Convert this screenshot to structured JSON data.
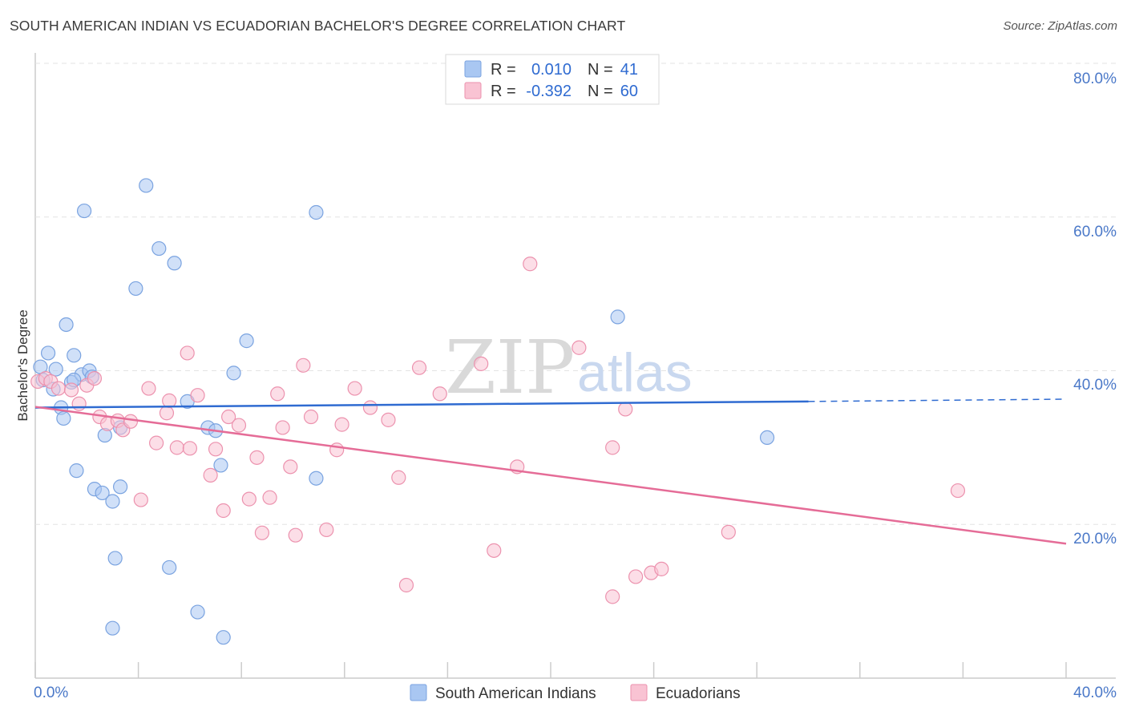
{
  "header": {
    "title": "SOUTH AMERICAN INDIAN VS ECUADORIAN BACHELOR'S DEGREE CORRELATION CHART",
    "source": "Source: ZipAtlas.com"
  },
  "watermark": {
    "zip": "ZIP",
    "atlas": "atlas"
  },
  "stats": {
    "rows": [
      {
        "r_label": "R =",
        "r_value": "0.010",
        "n_label": "N =",
        "n_value": "41",
        "color": "#a9c7f2",
        "stroke": "#7aa3e0"
      },
      {
        "r_label": "R =",
        "r_value": "-0.392",
        "n_label": "N =",
        "n_value": "60",
        "color": "#f9c3d3",
        "stroke": "#ec92ae"
      }
    ]
  },
  "legend": {
    "items": [
      {
        "label": "South American Indians",
        "color": "#a9c7f2",
        "stroke": "#7aa3e0"
      },
      {
        "label": "Ecuadorians",
        "color": "#f9c3d3",
        "stroke": "#ec92ae"
      }
    ]
  },
  "chart_data": {
    "type": "scatter",
    "title": "SOUTH AMERICAN INDIAN VS ECUADORIAN BACHELOR'S DEGREE CORRELATION CHART",
    "xlabel": "",
    "ylabel": "Bachelor's Degree",
    "xlim": [
      0,
      40
    ],
    "ylim": [
      0,
      80
    ],
    "x_tick_labels": [
      "0.0%",
      "40.0%"
    ],
    "y_ticks": [
      20,
      40,
      60,
      80
    ],
    "y_tick_labels": [
      "20.0%",
      "40.0%",
      "60.0%",
      "80.0%"
    ],
    "grid": true,
    "series": [
      {
        "name": "South American Indians",
        "color": "#a9c7f2",
        "stroke": "#7aa3e0",
        "line_color": "#2f6bd1",
        "trend": {
          "x0": 0,
          "y0": 35.2,
          "x1": 30.0,
          "y1": 36.0,
          "dash_to_x": 40,
          "dash_y": 36.3
        },
        "points": [
          [
            0.2,
            40.5
          ],
          [
            0.3,
            38.8
          ],
          [
            0.5,
            42.3
          ],
          [
            0.7,
            37.6
          ],
          [
            0.8,
            40.2
          ],
          [
            1.0,
            35.2
          ],
          [
            1.1,
            33.8
          ],
          [
            1.2,
            46.0
          ],
          [
            1.4,
            38.5
          ],
          [
            1.5,
            42.0
          ],
          [
            1.6,
            27.0
          ],
          [
            1.8,
            39.5
          ],
          [
            1.9,
            60.8
          ],
          [
            2.1,
            40.0
          ],
          [
            2.2,
            39.2
          ],
          [
            2.3,
            24.6
          ],
          [
            2.6,
            24.1
          ],
          [
            2.7,
            31.6
          ],
          [
            3.0,
            23.0
          ],
          [
            3.1,
            15.6
          ],
          [
            3.3,
            32.6
          ],
          [
            3.3,
            24.9
          ],
          [
            3.9,
            50.7
          ],
          [
            4.3,
            64.1
          ],
          [
            4.8,
            55.9
          ],
          [
            5.2,
            14.4
          ],
          [
            5.4,
            54.0
          ],
          [
            5.9,
            36.0
          ],
          [
            6.3,
            8.6
          ],
          [
            6.7,
            32.6
          ],
          [
            7.0,
            32.2
          ],
          [
            7.2,
            27.7
          ],
          [
            7.3,
            5.3
          ],
          [
            7.7,
            39.7
          ],
          [
            8.2,
            43.9
          ],
          [
            10.9,
            26.0
          ],
          [
            10.9,
            60.6
          ],
          [
            22.6,
            47.0
          ],
          [
            28.4,
            31.3
          ],
          [
            3.0,
            6.5
          ],
          [
            1.5,
            38.8
          ]
        ]
      },
      {
        "name": "Ecuadorians",
        "color": "#f9c3d3",
        "stroke": "#ec92ae",
        "line_color": "#e56c97",
        "trend": {
          "x0": 0,
          "y0": 35.3,
          "x1": 40,
          "y1": 17.5
        },
        "points": [
          [
            0.1,
            38.6
          ],
          [
            0.4,
            39.0
          ],
          [
            0.6,
            38.6
          ],
          [
            0.9,
            37.7
          ],
          [
            1.4,
            37.5
          ],
          [
            1.7,
            35.7
          ],
          [
            2.0,
            38.1
          ],
          [
            2.3,
            39.0
          ],
          [
            2.5,
            34.0
          ],
          [
            2.8,
            33.1
          ],
          [
            3.2,
            33.5
          ],
          [
            3.4,
            32.3
          ],
          [
            3.7,
            33.4
          ],
          [
            4.1,
            23.2
          ],
          [
            4.4,
            37.7
          ],
          [
            4.7,
            30.6
          ],
          [
            5.1,
            34.5
          ],
          [
            5.2,
            36.1
          ],
          [
            5.5,
            30.0
          ],
          [
            5.9,
            42.3
          ],
          [
            6.0,
            29.9
          ],
          [
            6.3,
            36.8
          ],
          [
            6.8,
            26.4
          ],
          [
            7.0,
            29.8
          ],
          [
            7.3,
            21.8
          ],
          [
            7.5,
            34.0
          ],
          [
            7.9,
            32.9
          ],
          [
            8.3,
            23.3
          ],
          [
            8.6,
            28.7
          ],
          [
            8.8,
            18.9
          ],
          [
            9.1,
            23.5
          ],
          [
            9.4,
            37.0
          ],
          [
            9.6,
            32.6
          ],
          [
            9.9,
            27.5
          ],
          [
            10.1,
            18.6
          ],
          [
            10.4,
            40.7
          ],
          [
            10.7,
            34.0
          ],
          [
            11.3,
            19.3
          ],
          [
            11.7,
            29.7
          ],
          [
            11.9,
            33.0
          ],
          [
            12.4,
            37.7
          ],
          [
            13.0,
            35.2
          ],
          [
            13.7,
            33.6
          ],
          [
            14.1,
            26.1
          ],
          [
            14.4,
            12.1
          ],
          [
            14.9,
            40.4
          ],
          [
            15.7,
            37.0
          ],
          [
            17.3,
            40.9
          ],
          [
            17.8,
            16.6
          ],
          [
            18.7,
            27.5
          ],
          [
            19.2,
            53.9
          ],
          [
            21.1,
            43.0
          ],
          [
            22.4,
            10.6
          ],
          [
            22.4,
            30.0
          ],
          [
            22.9,
            35.0
          ],
          [
            23.3,
            13.2
          ],
          [
            23.9,
            13.7
          ],
          [
            24.3,
            14.2
          ],
          [
            26.9,
            19.0
          ],
          [
            35.8,
            24.4
          ]
        ]
      }
    ]
  }
}
